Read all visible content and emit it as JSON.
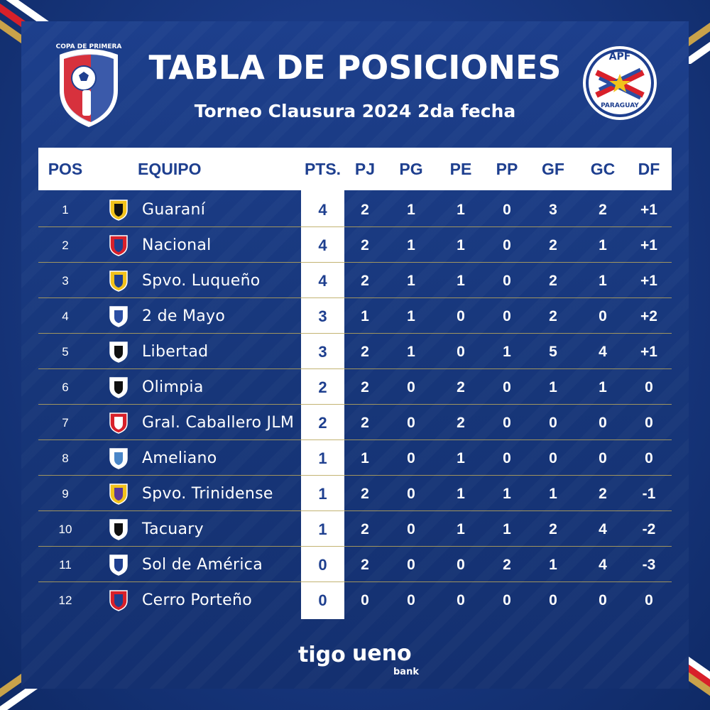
{
  "header": {
    "title": "TABLA DE POSICIONES",
    "subtitle": "Torneo Clausura 2024 2da fecha",
    "left_logo_text": "COPA DE PRIMERA",
    "right_logo_top": "APF",
    "right_logo_bottom": "PARAGUAY"
  },
  "columns": {
    "pos": "POS",
    "team": "EQUIPO",
    "pts": "PTS.",
    "pj": "PJ",
    "pg": "PG",
    "pe": "PE",
    "pp": "PP",
    "gf": "GF",
    "gc": "GC",
    "df": "DF"
  },
  "rows": [
    {
      "pos": "1",
      "team": "Guaraní",
      "pts": "4",
      "pj": "2",
      "pg": "1",
      "pe": "1",
      "pp": "0",
      "gf": "3",
      "gc": "2",
      "df": "+1",
      "badge": "guarani-badge-icon"
    },
    {
      "pos": "2",
      "team": "Nacional",
      "pts": "4",
      "pj": "2",
      "pg": "1",
      "pe": "1",
      "pp": "0",
      "gf": "2",
      "gc": "1",
      "df": "+1",
      "badge": "nacional-badge-icon"
    },
    {
      "pos": "3",
      "team": "Spvo. Luqueño",
      "pts": "4",
      "pj": "2",
      "pg": "1",
      "pe": "1",
      "pp": "0",
      "gf": "2",
      "gc": "1",
      "df": "+1",
      "badge": "luqueno-badge-icon"
    },
    {
      "pos": "4",
      "team": "2 de Mayo",
      "pts": "3",
      "pj": "1",
      "pg": "1",
      "pe": "0",
      "pp": "0",
      "gf": "2",
      "gc": "0",
      "df": "+2",
      "badge": "dos-de-mayo-badge-icon"
    },
    {
      "pos": "5",
      "team": "Libertad",
      "pts": "3",
      "pj": "2",
      "pg": "1",
      "pe": "0",
      "pp": "1",
      "gf": "5",
      "gc": "4",
      "df": "+1",
      "badge": "libertad-badge-icon"
    },
    {
      "pos": "6",
      "team": "Olimpia",
      "pts": "2",
      "pj": "2",
      "pg": "0",
      "pe": "2",
      "pp": "0",
      "gf": "1",
      "gc": "1",
      "df": "0",
      "badge": "olimpia-badge-icon"
    },
    {
      "pos": "7",
      "team": "Gral. Caballero JLM",
      "pts": "2",
      "pj": "2",
      "pg": "0",
      "pe": "2",
      "pp": "0",
      "gf": "0",
      "gc": "0",
      "df": "0",
      "badge": "caballero-badge-icon"
    },
    {
      "pos": "8",
      "team": "Ameliano",
      "pts": "1",
      "pj": "1",
      "pg": "0",
      "pe": "1",
      "pp": "0",
      "gf": "0",
      "gc": "0",
      "df": "0",
      "badge": "ameliano-badge-icon"
    },
    {
      "pos": "9",
      "team": "Spvo. Trinidense",
      "pts": "1",
      "pj": "2",
      "pg": "0",
      "pe": "1",
      "pp": "1",
      "gf": "1",
      "gc": "2",
      "df": "-1",
      "badge": "trinidense-badge-icon"
    },
    {
      "pos": "10",
      "team": "Tacuary",
      "pts": "1",
      "pj": "2",
      "pg": "0",
      "pe": "1",
      "pp": "1",
      "gf": "2",
      "gc": "4",
      "df": "-2",
      "badge": "tacuary-badge-icon"
    },
    {
      "pos": "11",
      "team": "Sol de América",
      "pts": "0",
      "pj": "2",
      "pg": "0",
      "pe": "0",
      "pp": "2",
      "gf": "1",
      "gc": "4",
      "df": "-3",
      "badge": "sol-de-america-badge-icon"
    },
    {
      "pos": "12",
      "team": "Cerro Porteño",
      "pts": "0",
      "pj": "0",
      "pg": "0",
      "pe": "0",
      "pp": "0",
      "gf": "0",
      "gc": "0",
      "df": "0",
      "badge": "cerro-porteno-badge-icon"
    }
  ],
  "sponsors": {
    "tigo": "tigo",
    "ueno": "ueno",
    "ueno_sub": "bank"
  },
  "colors": {
    "background": "#1a3a85",
    "header_text": "#1e3f8f",
    "row_line": "#b8a65a",
    "accent_red": "#d8202a",
    "accent_gold": "#c9a24a"
  }
}
